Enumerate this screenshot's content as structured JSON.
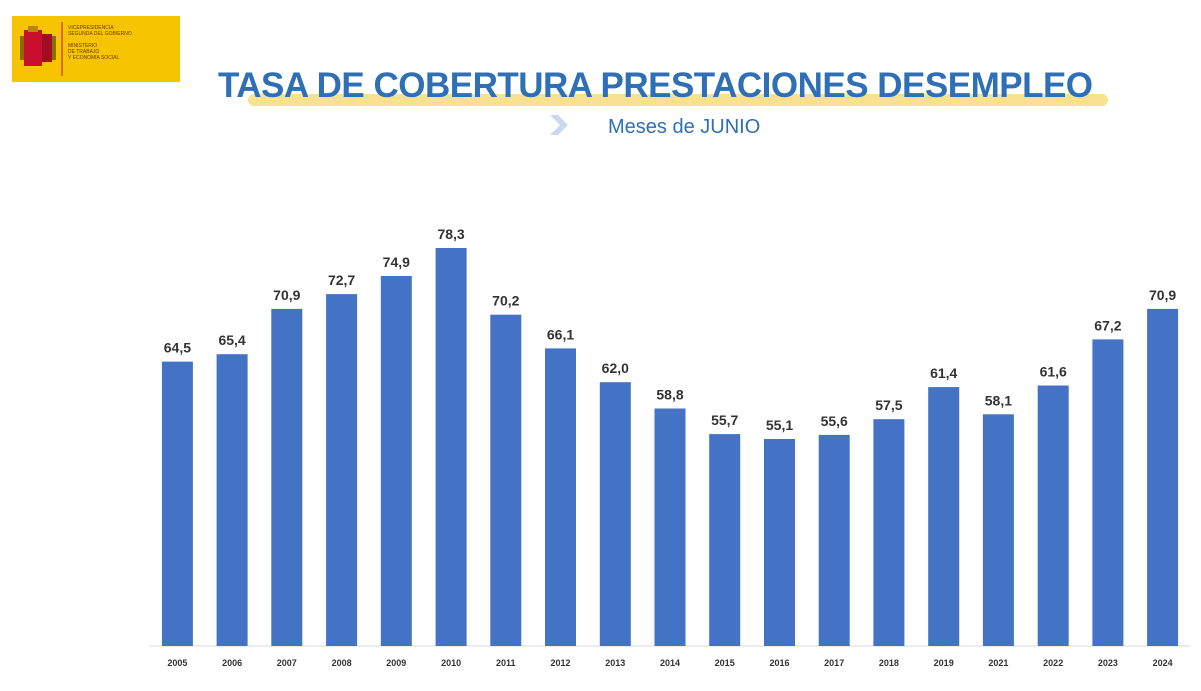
{
  "header": {
    "title": "TASA DE COBERTURA PRESTACIONES DESEMPLEO",
    "subtitle": "Meses de JUNIO",
    "logo": {
      "line1": "VICEPRESIDENCIA",
      "line2": "SEGUNDA DEL GOBIERNO",
      "line3": "MINISTERIO",
      "line4": "DE TRABAJO",
      "line5": "Y ECONOMÍA SOCIAL"
    }
  },
  "colors": {
    "bar": "#4472c4",
    "title": "#2e6fb5",
    "logo_bg": "#f6c400"
  },
  "chart_data": {
    "type": "bar",
    "title": "TASA DE COBERTURA PRESTACIONES DESEMPLEO",
    "subtitle": "Meses de JUNIO",
    "xlabel": "",
    "ylabel": "",
    "ylim": [
      0,
      80
    ],
    "grid": false,
    "legend": "none",
    "categories": [
      "2005",
      "2006",
      "2007",
      "2008",
      "2009",
      "2010",
      "2011",
      "2012",
      "2013",
      "2014",
      "2015",
      "2016",
      "2017",
      "2018",
      "2019",
      "2021",
      "2022",
      "2023",
      "2024"
    ],
    "values": [
      64.5,
      65.4,
      70.9,
      72.7,
      74.9,
      78.3,
      70.2,
      66.1,
      62.0,
      58.8,
      55.7,
      55.1,
      55.6,
      57.5,
      61.4,
      58.1,
      61.6,
      67.2,
      70.9
    ],
    "data_labels": [
      "64,5",
      "65,4",
      "70,9",
      "72,7",
      "74,9",
      "78,3",
      "70,2",
      "66,1",
      "62,0",
      "58,8",
      "55,7",
      "55,1",
      "55,6",
      "57,5",
      "61,4",
      "58,1",
      "61,6",
      "67,2",
      "70,9"
    ]
  }
}
